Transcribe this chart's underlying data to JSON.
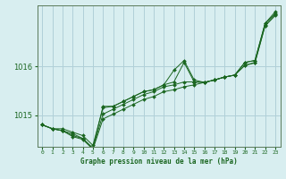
{
  "background_color": "#d8eef0",
  "grid_color": "#b0d0d8",
  "line_color": "#1a6620",
  "xlabel": "Graphe pression niveau de la mer (hPa)",
  "yticks": [
    1015,
    1016
  ],
  "xlim": [
    -0.5,
    23.5
  ],
  "ylim": [
    1014.35,
    1017.25
  ],
  "series": [
    [
      1014.8,
      1014.72,
      1014.72,
      1014.65,
      1014.58,
      1014.38,
      1015.15,
      1015.18,
      1015.28,
      1015.38,
      1015.48,
      1015.52,
      1015.62,
      1015.92,
      1016.12,
      1015.72,
      1015.67,
      1015.72,
      1015.78,
      1015.82,
      1016.08,
      1016.12,
      1016.88,
      1017.12
    ],
    [
      1014.8,
      1014.72,
      1014.68,
      1014.62,
      1014.52,
      1014.32,
      1015.18,
      1015.18,
      1015.28,
      1015.38,
      1015.48,
      1015.52,
      1015.62,
      1015.68,
      1016.08,
      1015.68,
      1015.67,
      1015.72,
      1015.78,
      1015.82,
      1016.08,
      1016.12,
      1016.88,
      1017.08
    ],
    [
      1014.8,
      1014.72,
      1014.68,
      1014.58,
      1014.52,
      1014.32,
      1015.02,
      1015.12,
      1015.22,
      1015.32,
      1015.42,
      1015.48,
      1015.58,
      1015.62,
      1015.68,
      1015.68,
      1015.67,
      1015.72,
      1015.78,
      1015.82,
      1016.02,
      1016.08,
      1016.84,
      1017.06
    ],
    [
      1014.8,
      1014.72,
      1014.68,
      1014.56,
      1014.5,
      1014.3,
      1014.92,
      1015.02,
      1015.12,
      1015.22,
      1015.32,
      1015.38,
      1015.48,
      1015.52,
      1015.58,
      1015.62,
      1015.67,
      1015.72,
      1015.78,
      1015.82,
      1016.02,
      1016.07,
      1016.83,
      1017.04
    ]
  ]
}
